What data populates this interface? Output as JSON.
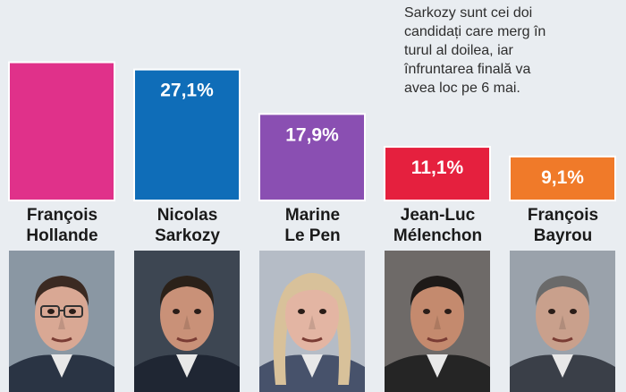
{
  "caption": {
    "lines": [
      "Sarkozy sunt cei doi",
      "candidați care merg în",
      "turul al doilea, iar",
      "înfruntarea finală va",
      "avea loc pe 6 mai."
    ]
  },
  "chart_data": {
    "type": "bar",
    "title": "",
    "xlabel": "",
    "ylabel": "",
    "ylim": [
      0,
      30
    ],
    "grid": false,
    "legend": "none",
    "categories": [
      "François Hollande",
      "Nicolas Sarkozy",
      "Marine Le Pen",
      "Jean-Luc Mélenchon",
      "François Bayrou"
    ],
    "category_lines": [
      [
        "François",
        "Hollande"
      ],
      [
        "Nicolas",
        "Sarkozy"
      ],
      [
        "Marine",
        "Le Pen"
      ],
      [
        "Jean-Luc",
        "Mélenchon"
      ],
      [
        "François",
        "Bayrou"
      ]
    ],
    "values": [
      28.6,
      27.1,
      17.9,
      11.1,
      9.1
    ],
    "data_labels": [
      "",
      "27,1%",
      "17,9%",
      "11,1%",
      "9,1%"
    ],
    "colors": [
      "#e0318a",
      "#0f6db8",
      "#8a4fb2",
      "#e5203e",
      "#f07a29"
    ]
  },
  "photos": [
    {
      "name": "hollande-photo",
      "skin": "#d9a894",
      "hair": "#3b2a22",
      "suit": "#2a3444",
      "bg": "#8a97a3"
    },
    {
      "name": "sarkozy-photo",
      "skin": "#c99178",
      "hair": "#2b2119",
      "suit": "#1f2633",
      "bg": "#3d4652"
    },
    {
      "name": "lepen-photo",
      "skin": "#e3b5a3",
      "hair": "#d8c19a",
      "suit": "#47526b",
      "bg": "#b5bcc6"
    },
    {
      "name": "melenchon-photo",
      "skin": "#c48a6e",
      "hair": "#1e1a18",
      "suit": "#252525",
      "bg": "#6e6a68"
    },
    {
      "name": "bayrou-photo",
      "skin": "#c9a08c",
      "hair": "#6a6a6a",
      "suit": "#3a3f48",
      "bg": "#9aa2ab"
    }
  ]
}
